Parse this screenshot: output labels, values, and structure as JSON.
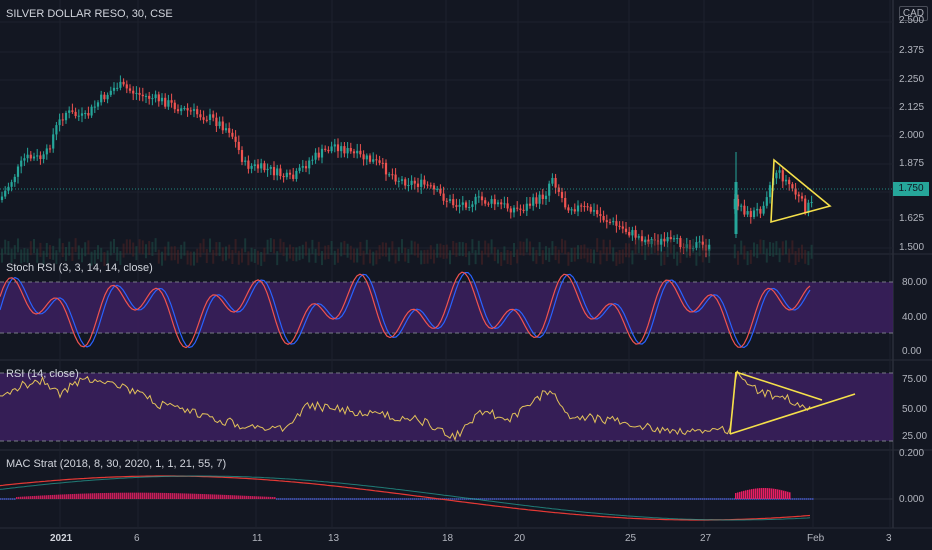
{
  "colors": {
    "background": "#131722",
    "grid": "#1e222d",
    "up": "#26a69a",
    "down": "#ef5350",
    "drawing": "#f5e04a",
    "stoch_k": "#2962ff",
    "stoch_d": "#ef5350",
    "rsi_line": "#e2c15a",
    "band_fill": "#3a1f5c",
    "macd_line": "#e53935",
    "signal_line": "#26a69a",
    "hist_pos": "#e91e63",
    "hist_neg": "#3f51b5"
  },
  "header": {
    "symbol_title": "SILVER DOLLAR RESO, 30, CSE",
    "currency_badge": "CAD"
  },
  "price_pane": {
    "axis_ticks": [
      "2.500",
      "2.375",
      "2.250",
      "2.125",
      "2.000",
      "1.875",
      "1.750",
      "1.625",
      "1.500"
    ],
    "last_price": "1.750",
    "trend_drawing": "triangle"
  },
  "stoch_pane": {
    "label": "Stoch RSI (3, 3, 14, 14, close)",
    "axis_ticks": [
      "80.00",
      "40.00",
      "0.00"
    ],
    "band": [
      20,
      80
    ]
  },
  "rsi_pane": {
    "label": "RSI (14, close)",
    "axis_ticks": [
      "75.00",
      "50.00",
      "25.00"
    ],
    "band": [
      30,
      70
    ]
  },
  "mac_pane": {
    "label": "MAC Strat (2018, 8, 30, 2020, 1, 1, 21, 55, 7)",
    "axis_ticks": [
      "0.200",
      "0.000"
    ]
  },
  "time_axis": {
    "labels": [
      "2021",
      "6",
      "11",
      "13",
      "18",
      "20",
      "25",
      "27",
      "Feb",
      "3"
    ]
  }
}
